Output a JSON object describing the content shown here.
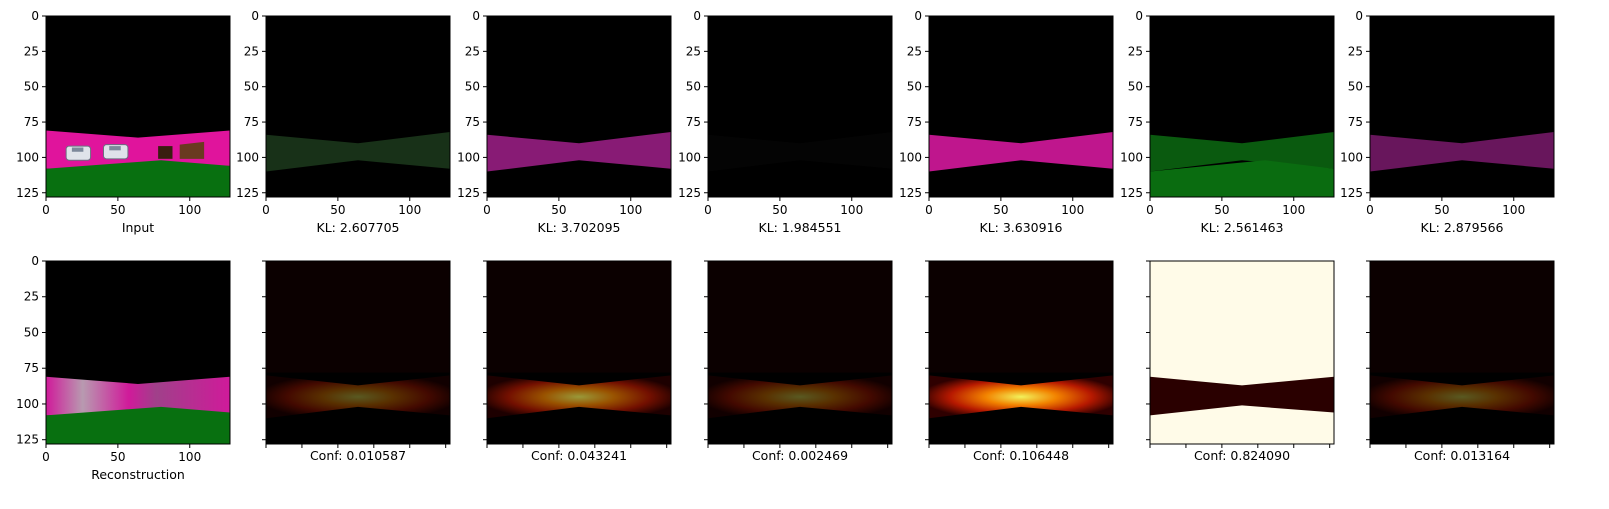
{
  "figure": {
    "ticks": [
      "0",
      "25",
      "50",
      "75",
      "100",
      "125"
    ],
    "xticks": [
      "0",
      "50",
      "100"
    ],
    "image_size": 128,
    "top_row": [
      {
        "label": "Input",
        "kind": "scene"
      },
      {
        "label": "KL: 2.607705",
        "kind": "slot",
        "tint": "#1c3a1c"
      },
      {
        "label": "KL: 3.702095",
        "kind": "slot",
        "tint": "#a0208a"
      },
      {
        "label": "KL: 1.984551",
        "kind": "slot",
        "tint": "#050505"
      },
      {
        "label": "KL: 3.630916",
        "kind": "slot",
        "tint": "#e01aa6"
      },
      {
        "label": "KL: 2.561463",
        "kind": "slot",
        "tint": "#0c6a12"
      },
      {
        "label": "KL: 2.879566",
        "kind": "slot",
        "tint": "#7a1a6c"
      }
    ],
    "bottom_row": [
      {
        "label": "Reconstruction",
        "kind": "recon"
      },
      {
        "label": "Conf: 0.010587",
        "kind": "heat",
        "level": 0.35
      },
      {
        "label": "Conf: 0.043241",
        "kind": "heat",
        "level": 0.6
      },
      {
        "label": "Conf: 0.002469",
        "kind": "heat",
        "level": 0.2
      },
      {
        "label": "Conf: 0.106448",
        "kind": "heat",
        "level": 0.95
      },
      {
        "label": "Conf: 0.824090",
        "kind": "heat-inverse",
        "level": 1.0
      },
      {
        "label": "Conf: 0.013164",
        "kind": "heat",
        "level": 0.3
      }
    ]
  }
}
